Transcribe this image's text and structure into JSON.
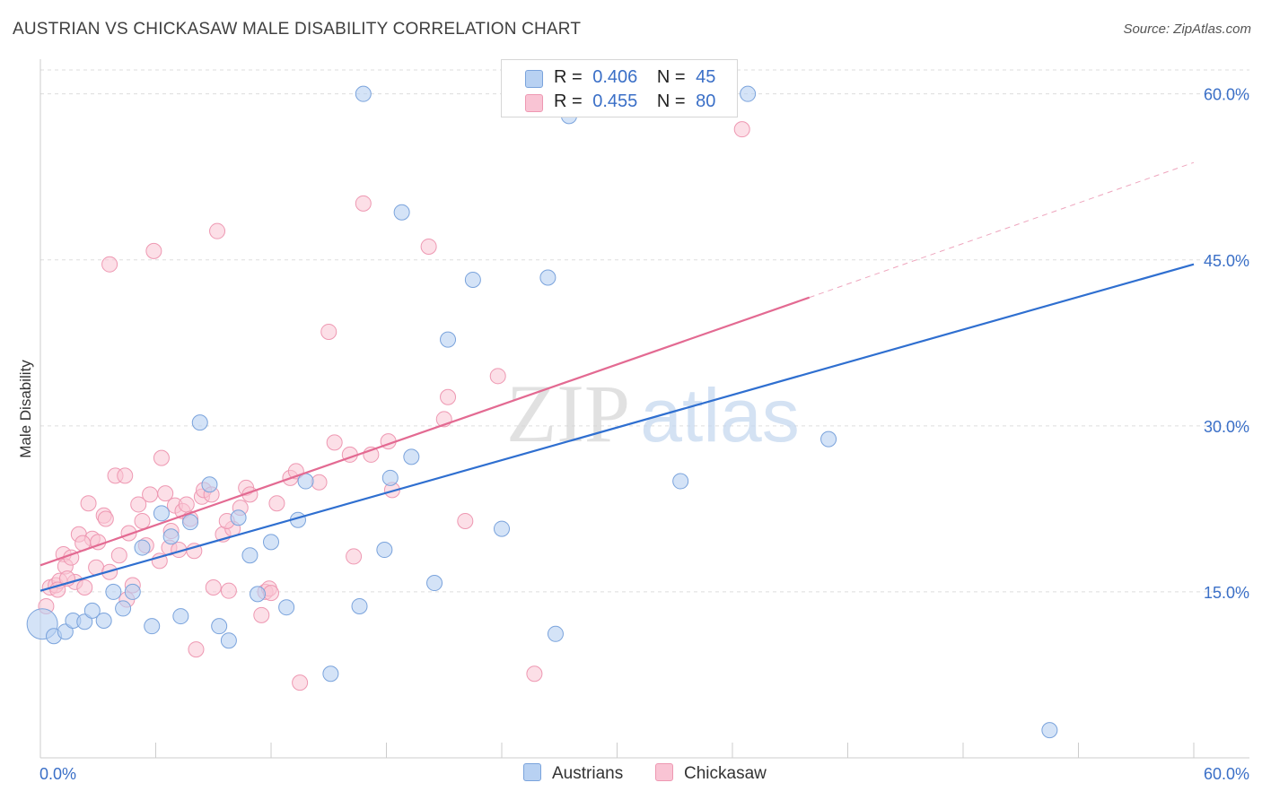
{
  "title": "AUSTRIAN VS CHICKASAW MALE DISABILITY CORRELATION CHART",
  "source": "Source: ZipAtlas.com",
  "watermark": {
    "zip": "ZIP",
    "atlas": "atlas"
  },
  "legend": {
    "rows": [
      {
        "r_label": "R =",
        "r_value": "0.406",
        "n_label": "N =",
        "n_value": "45"
      },
      {
        "r_label": "R =",
        "r_value": "0.455",
        "n_label": "N =",
        "n_value": "80"
      }
    ]
  },
  "bottom_legend": {
    "austrians": "Austrians",
    "chickasaw": "Chickasaw"
  },
  "colors": {
    "austrians_fill": "#b8d1f2",
    "austrians_stroke": "#7aa3dc",
    "austrians_line": "#2f6fd0",
    "chickasaw_fill": "#f9c4d4",
    "chickasaw_stroke": "#ee98b2",
    "chickasaw_line": "#e36a92",
    "axis_label": "#3a6fc7",
    "grid": "#dddddd"
  },
  "chart_data": {
    "type": "scatter",
    "title": "AUSTRIAN VS CHICKASAW MALE DISABILITY CORRELATION CHART",
    "xlabel": "",
    "ylabel": "Male Disability",
    "xlim": [
      0,
      60
    ],
    "ylim": [
      0,
      62
    ],
    "x_tick_labels": [
      "0.0%",
      "60.0%"
    ],
    "y_ticks": [
      15,
      30,
      45,
      60
    ],
    "y_tick_labels": [
      "15.0%",
      "30.0%",
      "45.0%",
      "60.0%"
    ],
    "grid": true,
    "series": [
      {
        "name": "Austrians",
        "r": 0.406,
        "n": 45,
        "trend": {
          "x0": 0,
          "y0": 15.1,
          "x1": 60,
          "y1": 44.6
        },
        "points": [
          [
            0.1,
            12.1
          ],
          [
            0.7,
            11.0
          ],
          [
            1.3,
            11.4
          ],
          [
            1.7,
            12.4
          ],
          [
            2.3,
            12.3
          ],
          [
            2.7,
            13.3
          ],
          [
            3.3,
            12.4
          ],
          [
            3.8,
            15.0
          ],
          [
            4.3,
            13.5
          ],
          [
            4.8,
            15.0
          ],
          [
            5.3,
            19.0
          ],
          [
            5.8,
            11.9
          ],
          [
            6.3,
            22.1
          ],
          [
            6.8,
            20.0
          ],
          [
            7.3,
            12.8
          ],
          [
            7.8,
            21.3
          ],
          [
            8.3,
            30.3
          ],
          [
            8.8,
            24.7
          ],
          [
            9.3,
            11.9
          ],
          [
            9.8,
            10.6
          ],
          [
            10.3,
            21.7
          ],
          [
            10.9,
            18.3
          ],
          [
            11.3,
            14.8
          ],
          [
            12.0,
            19.5
          ],
          [
            12.8,
            13.6
          ],
          [
            13.4,
            21.5
          ],
          [
            13.8,
            25.0
          ],
          [
            15.1,
            7.6
          ],
          [
            16.6,
            13.7
          ],
          [
            16.8,
            60.0
          ],
          [
            17.9,
            18.8
          ],
          [
            18.2,
            25.3
          ],
          [
            18.8,
            49.3
          ],
          [
            19.3,
            27.2
          ],
          [
            20.5,
            15.8
          ],
          [
            21.2,
            37.8
          ],
          [
            22.5,
            43.2
          ],
          [
            24.0,
            20.7
          ],
          [
            26.4,
            43.4
          ],
          [
            26.8,
            11.2
          ],
          [
            33.3,
            25.0
          ],
          [
            36.8,
            60.0
          ],
          [
            41.0,
            28.8
          ],
          [
            52.5,
            2.5
          ],
          [
            27.5,
            58.0
          ]
        ]
      },
      {
        "name": "Chickasaw",
        "r": 0.455,
        "n": 80,
        "trend": {
          "x0": 0,
          "y0": 17.4,
          "x1": 40,
          "y1": 41.6,
          "x2": 60,
          "y2": 53.8
        },
        "points": [
          [
            0.3,
            13.7
          ],
          [
            0.5,
            15.4
          ],
          [
            0.8,
            15.6
          ],
          [
            1.0,
            16.0
          ],
          [
            1.2,
            18.4
          ],
          [
            1.3,
            17.3
          ],
          [
            1.6,
            18.1
          ],
          [
            1.8,
            15.9
          ],
          [
            2.0,
            20.2
          ],
          [
            2.3,
            15.4
          ],
          [
            2.5,
            23.0
          ],
          [
            2.7,
            19.8
          ],
          [
            2.9,
            17.2
          ],
          [
            3.0,
            19.5
          ],
          [
            3.3,
            21.9
          ],
          [
            3.4,
            21.6
          ],
          [
            3.6,
            16.8
          ],
          [
            3.9,
            25.5
          ],
          [
            4.1,
            18.3
          ],
          [
            4.4,
            25.5
          ],
          [
            4.6,
            20.3
          ],
          [
            4.8,
            15.6
          ],
          [
            5.1,
            22.9
          ],
          [
            5.3,
            21.4
          ],
          [
            5.7,
            23.8
          ],
          [
            5.9,
            45.8
          ],
          [
            6.2,
            17.8
          ],
          [
            6.3,
            27.1
          ],
          [
            6.5,
            23.9
          ],
          [
            6.7,
            19.0
          ],
          [
            7.0,
            22.8
          ],
          [
            7.4,
            22.3
          ],
          [
            7.6,
            22.9
          ],
          [
            7.8,
            21.6
          ],
          [
            8.0,
            18.7
          ],
          [
            8.1,
            9.8
          ],
          [
            8.4,
            23.6
          ],
          [
            8.5,
            24.2
          ],
          [
            8.9,
            23.8
          ],
          [
            9.0,
            15.4
          ],
          [
            9.2,
            47.6
          ],
          [
            9.5,
            20.2
          ],
          [
            9.8,
            15.1
          ],
          [
            10.0,
            20.7
          ],
          [
            10.4,
            22.6
          ],
          [
            10.7,
            24.4
          ],
          [
            10.9,
            23.8
          ],
          [
            11.5,
            12.9
          ],
          [
            11.7,
            15.0
          ],
          [
            11.9,
            15.3
          ],
          [
            12.3,
            23.0
          ],
          [
            13.0,
            25.3
          ],
          [
            13.3,
            25.9
          ],
          [
            13.5,
            6.8
          ],
          [
            14.5,
            24.9
          ],
          [
            15.0,
            38.5
          ],
          [
            15.3,
            28.5
          ],
          [
            16.1,
            27.4
          ],
          [
            16.3,
            18.2
          ],
          [
            16.8,
            50.1
          ],
          [
            17.2,
            27.4
          ],
          [
            18.1,
            28.6
          ],
          [
            18.3,
            24.2
          ],
          [
            20.2,
            46.2
          ],
          [
            21.0,
            30.6
          ],
          [
            21.2,
            32.6
          ],
          [
            22.1,
            21.4
          ],
          [
            23.8,
            34.5
          ],
          [
            25.7,
            7.6
          ],
          [
            36.5,
            56.8
          ],
          [
            3.6,
            44.6
          ],
          [
            4.5,
            14.3
          ],
          [
            5.5,
            19.2
          ],
          [
            7.2,
            18.8
          ],
          [
            9.7,
            21.4
          ],
          [
            12.0,
            14.9
          ],
          [
            6.8,
            20.5
          ],
          [
            2.2,
            19.4
          ],
          [
            1.4,
            16.2
          ],
          [
            0.9,
            15.2
          ]
        ]
      }
    ]
  }
}
